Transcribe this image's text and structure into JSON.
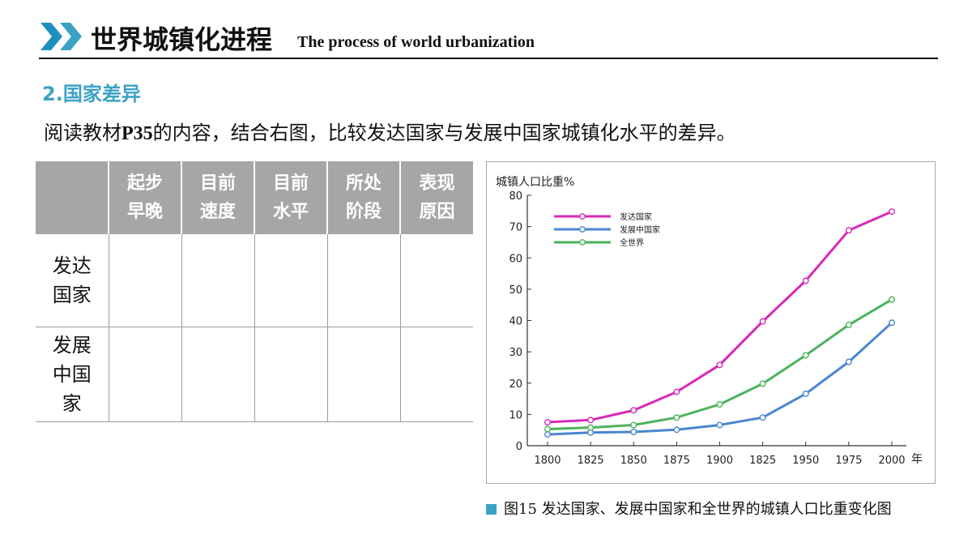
{
  "header": {
    "title_cn": "世界城镇化进程",
    "title_en": "The process of world urbanization"
  },
  "section": {
    "heading": "2.国家差异"
  },
  "instruction": {
    "prefix": "阅读教材",
    "page": "P35",
    "suffix": "的内容，结合右图，比较发达国家与发展中国家城镇化水平的差异。"
  },
  "table": {
    "columns": [
      {
        "lines": [
          "起步",
          "早晚"
        ]
      },
      {
        "lines": [
          "目前",
          "速度"
        ]
      },
      {
        "lines": [
          "目前",
          "水平"
        ]
      },
      {
        "lines": [
          "所处",
          "阶段"
        ]
      },
      {
        "lines": [
          "表现",
          "原因"
        ]
      }
    ],
    "rows": [
      {
        "lines": [
          "发达",
          "国家"
        ]
      },
      {
        "lines": [
          "发展",
          "中国",
          "家"
        ]
      }
    ]
  },
  "chart_data": {
    "type": "line",
    "ylabel": "城镇人口比重%",
    "xlabel": "年",
    "x": [
      "1800",
      "1825",
      "1850",
      "1875",
      "1900",
      "1825",
      "1950",
      "1975",
      "2000"
    ],
    "yticks": [
      "0",
      "10",
      "20",
      "30",
      "40",
      "50",
      "60",
      "70",
      "80"
    ],
    "ylim": [
      0,
      80
    ],
    "grid": false,
    "legend_position": "top-left",
    "series": [
      {
        "name": "发达国家",
        "color": "#d62ab8",
        "values": [
          7.5,
          8.2,
          11.3,
          17.2,
          25.8,
          39.7,
          52.7,
          68.8,
          74.8
        ]
      },
      {
        "name": "发展中国家",
        "color": "#4a86cf",
        "values": [
          3.6,
          4.2,
          4.4,
          5.1,
          6.6,
          9.0,
          16.6,
          26.8,
          39.3
        ]
      },
      {
        "name": "全世界",
        "color": "#4cb35c",
        "values": [
          5.3,
          5.8,
          6.6,
          9.0,
          13.2,
          19.8,
          28.9,
          38.6,
          46.7
        ]
      }
    ]
  },
  "caption": {
    "text": "图15 发达国家、发展中国家和全世界的城镇人口比重变化图",
    "square_color": "#3ba2c4"
  }
}
